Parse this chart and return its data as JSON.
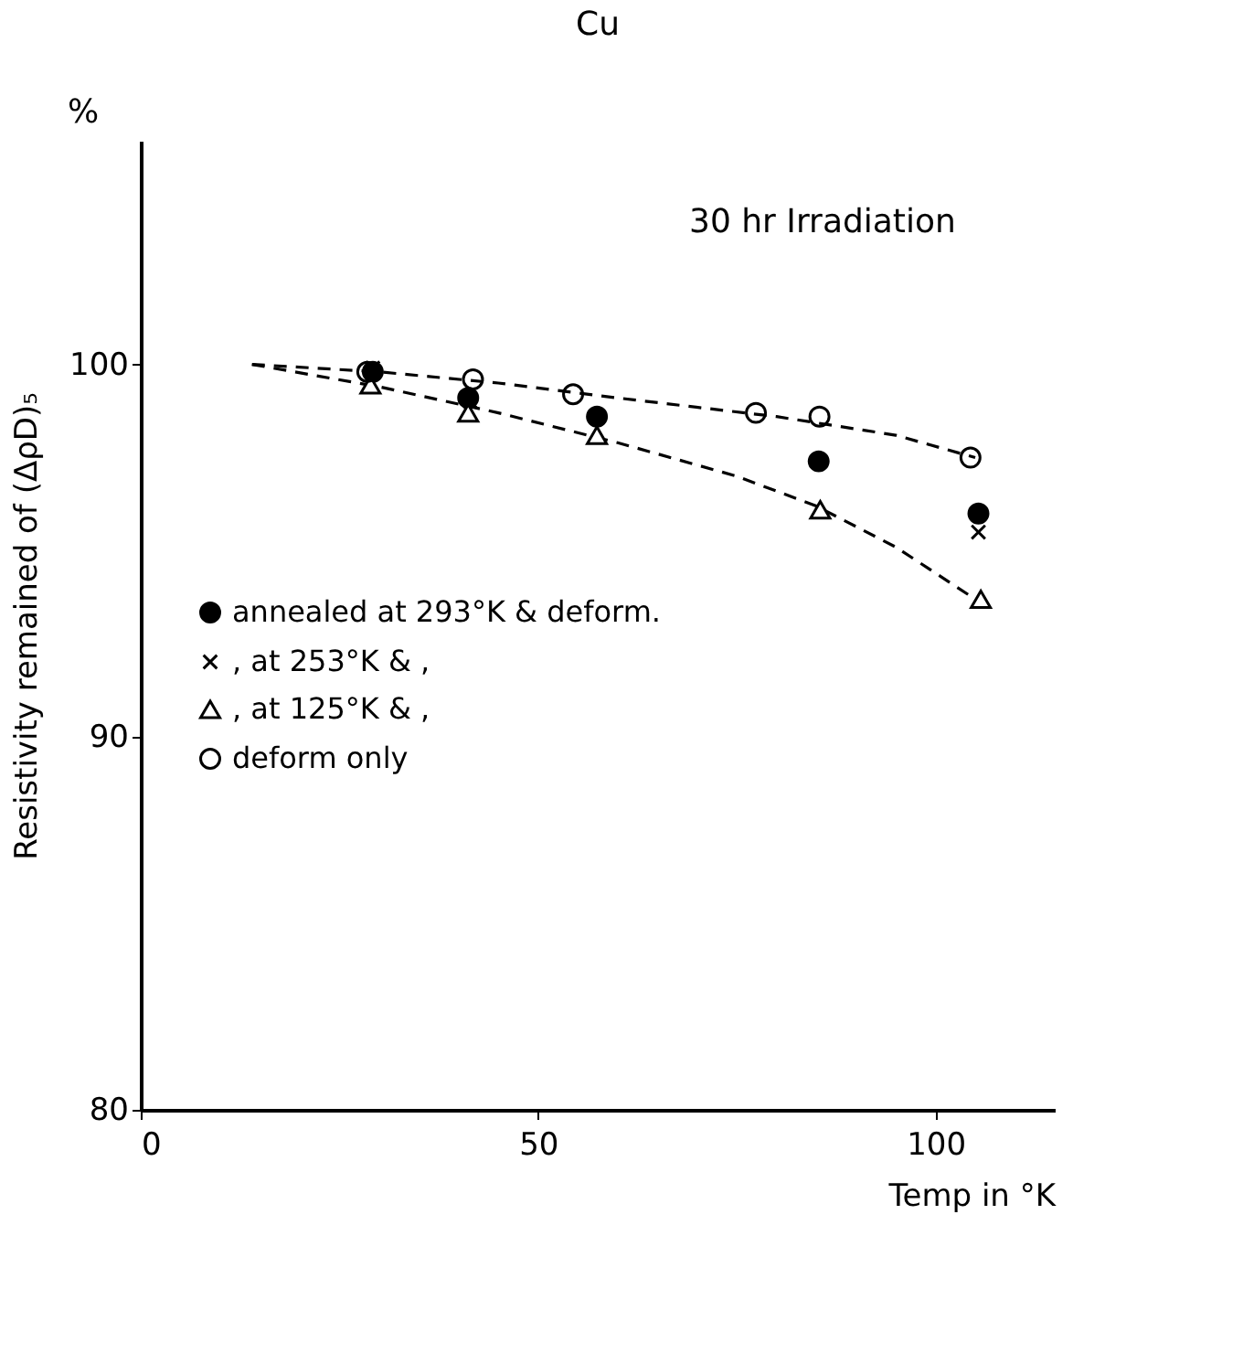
{
  "chart_data": {
    "type": "scatter",
    "title": "Cu",
    "xlabel": "Temp in °K",
    "ylabel": "Resistivity remained of (ΔρD)₅",
    "annotations": [
      "%",
      "30 hr Irradiation"
    ],
    "xlim": [
      0,
      115
    ],
    "ylim": [
      80,
      106
    ],
    "xticks": [
      0,
      50,
      100
    ],
    "yticks": [
      80,
      90,
      100
    ],
    "grid": false,
    "legend": "left",
    "series": [
      {
        "name": "annealed at 293°K & deform.",
        "color": "#000000",
        "marker": "circle",
        "x": [
          29.2,
          41.2,
          57.4,
          85.3,
          105.4
        ],
        "values": [
          99.8,
          99.1,
          98.6,
          97.4,
          96.0
        ]
      },
      {
        "name": ",     at 253°K &     ,",
        "color": "#000000",
        "marker": "cross",
        "x": [
          29.2,
          41.5,
          57.4,
          105.4
        ],
        "values": [
          99.9,
          99.0,
          null,
          95.5
        ]
      },
      {
        "name": ",     at 125°K &     ,",
        "color": "#000000",
        "marker": "triangle-open",
        "x": [
          28.9,
          41.2,
          57.4,
          85.5,
          105.7
        ],
        "values": [
          99.45,
          98.7,
          98.1,
          96.1,
          93.7
        ]
      },
      {
        "name": "deform only",
        "color": "#000000",
        "marker": "circle-open",
        "x": [
          28.5,
          41.8,
          54.4,
          77.4,
          85.4,
          104.4
        ],
        "values": [
          99.8,
          99.6,
          99.2,
          98.7,
          98.6,
          97.5
        ]
      },
      {
        "type": "line",
        "line_style": "dashed",
        "color": "#000000",
        "x": [
          14,
          30,
          45,
          60,
          80,
          95,
          105
        ],
        "values": [
          100,
          99.8,
          99.5,
          99.1,
          98.6,
          98.1,
          97.5
        ]
      },
      {
        "type": "line",
        "line_style": "dashed",
        "color": "#000000",
        "x": [
          14,
          30,
          45,
          60,
          75,
          85,
          95,
          105
        ],
        "values": [
          100,
          99.4,
          98.7,
          97.9,
          97.0,
          96.2,
          95.1,
          93.7
        ]
      }
    ]
  }
}
